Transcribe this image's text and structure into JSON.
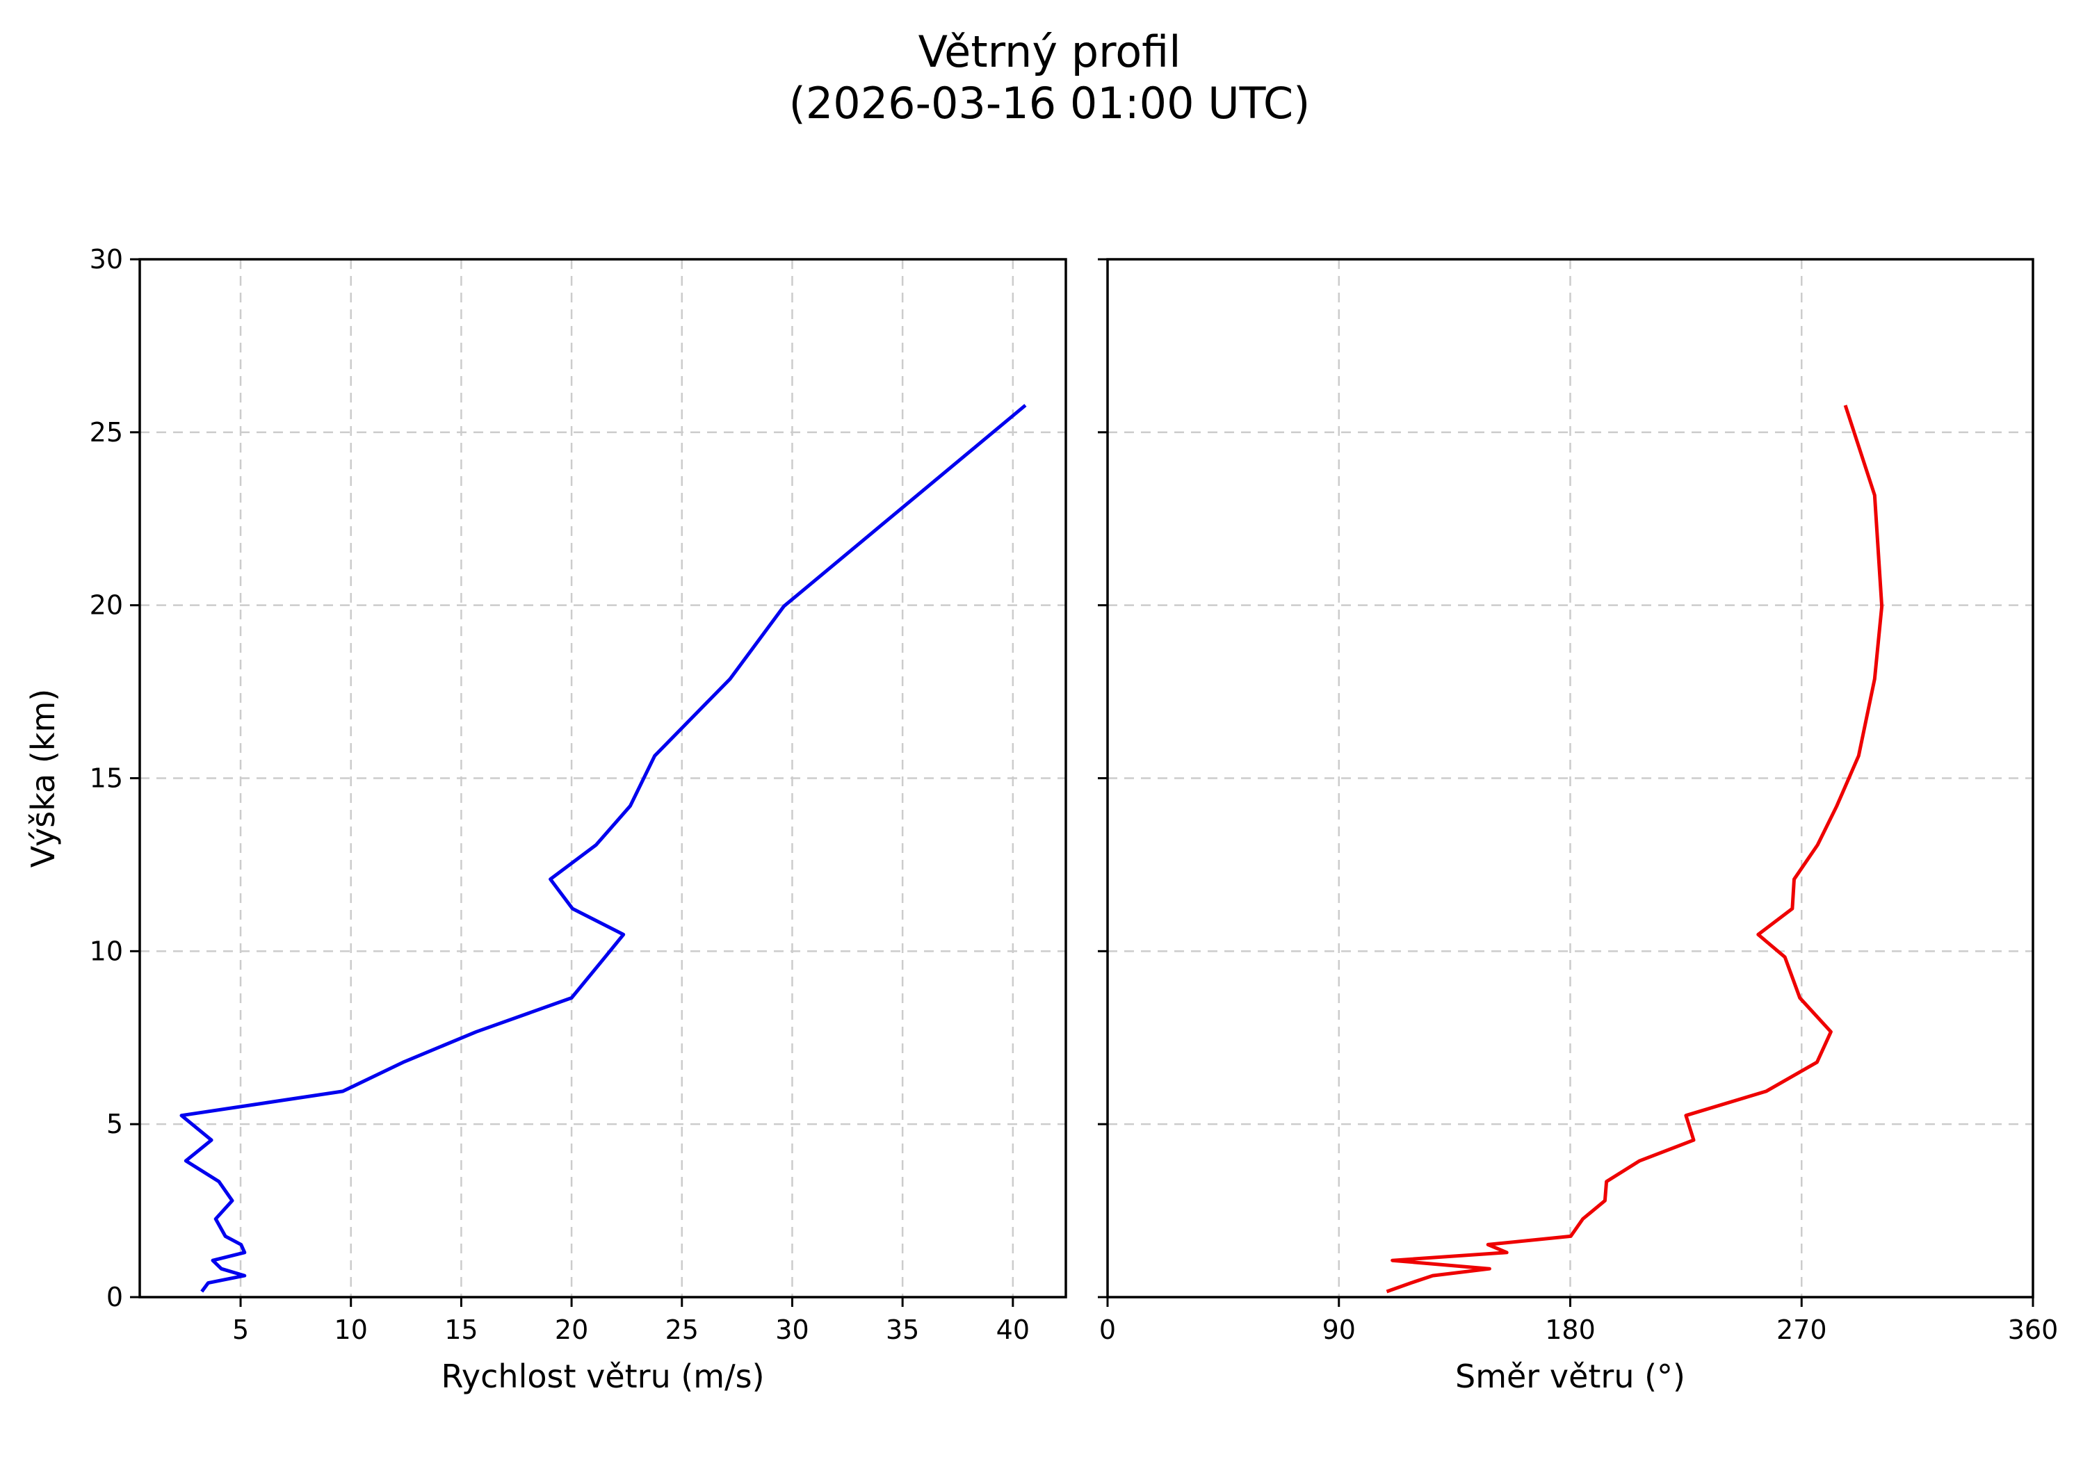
{
  "figure": {
    "title_line1": "Větrný profil",
    "title_line2": "(2026-03-16 01:00 UTC)"
  },
  "colors": {
    "speed_line": "#0000ee",
    "direction_line": "#ee0000",
    "grid": "#cccccc",
    "axes": "#000000",
    "background": "#ffffff"
  },
  "chart_data": [
    {
      "type": "line",
      "title": "Větrný profil (2026-03-16 01:00 UTC)",
      "xlabel": "Rychlost větru (m/s)",
      "ylabel": "Výška (km)",
      "xlim": [
        0.43,
        42.4
      ],
      "ylim": [
        0,
        30
      ],
      "xticks": [
        5,
        10,
        15,
        20,
        25,
        30,
        35,
        40
      ],
      "yticks": [
        0,
        5,
        10,
        15,
        20,
        25,
        30
      ],
      "grid": true,
      "orientation": "vertical-profile",
      "series": [
        {
          "name": "Rychlost větru",
          "color": "#0000ee",
          "x": [
            3.24,
            3.53,
            5.18,
            4.13,
            3.74,
            5.18,
            5.02,
            4.31,
            3.87,
            4.62,
            4.02,
            2.52,
            3.68,
            2.32,
            9.63,
            12.37,
            15.68,
            20.0,
            21.52,
            22.35,
            20.04,
            19.04,
            21.11,
            22.66,
            23.77,
            27.18,
            29.62,
            35.67,
            40.57
          ],
          "y": [
            0.16,
            0.41,
            0.62,
            0.82,
            1.06,
            1.29,
            1.52,
            1.76,
            2.26,
            2.79,
            3.34,
            3.94,
            4.54,
            5.25,
            5.95,
            6.79,
            7.67,
            8.65,
            9.83,
            10.48,
            11.23,
            12.08,
            13.07,
            14.2,
            15.65,
            17.87,
            19.97,
            23.18,
            25.78
          ]
        }
      ]
    },
    {
      "type": "line",
      "title": "",
      "xlabel": "Směr větru (°)",
      "ylabel": "",
      "xlim": [
        0,
        360
      ],
      "ylim": [
        0,
        30
      ],
      "xticks": [
        0,
        90,
        180,
        270,
        360
      ],
      "yticks": [
        0,
        5,
        10,
        15,
        20,
        25,
        30
      ],
      "ytick_labels_visible": false,
      "grid": true,
      "orientation": "vertical-profile",
      "series": [
        {
          "name": "Směr větru",
          "color": "#ee0000",
          "x": [
            108.6,
            118.0,
            126.5,
            148.6,
            110.8,
            155.3,
            148.0,
            180.2,
            184.9,
            193.5,
            194.1,
            207.0,
            228.0,
            225.0,
            256.2,
            276.0,
            281.4,
            269.3,
            263.5,
            253.1,
            266.4,
            267.1,
            276.2,
            283.7,
            292.2,
            298.4,
            301.2,
            298.4,
            287.0
          ],
          "y": [
            0.16,
            0.41,
            0.62,
            0.82,
            1.06,
            1.29,
            1.52,
            1.76,
            2.26,
            2.79,
            3.34,
            3.94,
            4.54,
            5.25,
            5.95,
            6.79,
            7.67,
            8.65,
            9.83,
            10.48,
            11.23,
            12.08,
            13.07,
            14.2,
            15.65,
            17.87,
            19.97,
            23.18,
            25.78
          ]
        }
      ]
    }
  ]
}
